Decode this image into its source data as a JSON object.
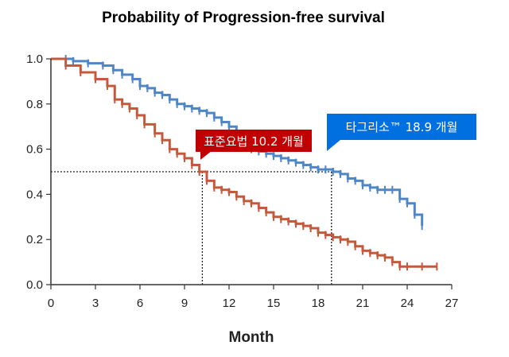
{
  "chart_data": {
    "type": "line",
    "title": "Probability of Progression-free survival",
    "xlabel": "Month",
    "ylabel": "",
    "xlim": [
      0,
      27
    ],
    "ylim": [
      0,
      1.0
    ],
    "xticks": [
      "0",
      "3",
      "6",
      "9",
      "12",
      "15",
      "18",
      "21",
      "24",
      "27"
    ],
    "yticks": [
      "0.0",
      "0.2",
      "0.4",
      "0.6",
      "0.8",
      "1.0"
    ],
    "grid": false,
    "median_reference_y": 0.5,
    "series": [
      {
        "name": "타그리소™ 18.9 개월",
        "color": "#4f86c6",
        "median": 18.9,
        "x": [
          0,
          1.0,
          1.5,
          2.5,
          3.5,
          4.2,
          4.8,
          5.5,
          6.0,
          6.5,
          7.0,
          7.5,
          8.0,
          8.5,
          9.0,
          9.5,
          10.0,
          10.5,
          11.0,
          11.5,
          12.0,
          12.5,
          13.0,
          13.5,
          14.0,
          14.5,
          15.0,
          15.5,
          16.0,
          16.5,
          17.0,
          17.5,
          18.0,
          18.5,
          19.0,
          19.5,
          20.0,
          20.5,
          21.0,
          21.5,
          22.0,
          22.5,
          23.0,
          23.5,
          24.0,
          24.5,
          25.0
        ],
        "y": [
          1.0,
          1.0,
          0.99,
          0.98,
          0.97,
          0.95,
          0.93,
          0.91,
          0.88,
          0.87,
          0.85,
          0.84,
          0.82,
          0.8,
          0.79,
          0.78,
          0.77,
          0.76,
          0.74,
          0.72,
          0.7,
          0.64,
          0.63,
          0.6,
          0.59,
          0.58,
          0.57,
          0.56,
          0.55,
          0.54,
          0.53,
          0.52,
          0.51,
          0.51,
          0.5,
          0.49,
          0.47,
          0.46,
          0.44,
          0.43,
          0.42,
          0.42,
          0.42,
          0.38,
          0.36,
          0.31,
          0.26
        ]
      },
      {
        "name": "표준요법 10.2 개월",
        "color": "#c45a3c",
        "median": 10.2,
        "x": [
          0,
          1.0,
          2.0,
          3.0,
          3.8,
          4.3,
          4.8,
          5.3,
          5.8,
          6.3,
          7.0,
          7.5,
          8.0,
          8.5,
          9.0,
          9.5,
          10.0,
          10.5,
          11.0,
          11.5,
          12.0,
          12.5,
          13.0,
          13.5,
          14.0,
          14.5,
          15.0,
          15.5,
          16.0,
          16.5,
          17.0,
          17.5,
          18.0,
          18.5,
          19.0,
          19.5,
          20.0,
          20.5,
          21.0,
          21.5,
          22.0,
          22.5,
          23.0,
          23.5,
          24.0,
          25.0,
          26.0
        ],
        "y": [
          1.0,
          0.97,
          0.94,
          0.91,
          0.88,
          0.82,
          0.8,
          0.78,
          0.75,
          0.71,
          0.67,
          0.64,
          0.6,
          0.58,
          0.56,
          0.53,
          0.5,
          0.46,
          0.43,
          0.42,
          0.41,
          0.39,
          0.37,
          0.36,
          0.34,
          0.32,
          0.3,
          0.29,
          0.28,
          0.27,
          0.26,
          0.25,
          0.23,
          0.22,
          0.21,
          0.2,
          0.19,
          0.17,
          0.15,
          0.14,
          0.13,
          0.12,
          0.1,
          0.08,
          0.08,
          0.08,
          0.08
        ]
      }
    ],
    "callouts": [
      {
        "text": "표준요법 10.2 개월",
        "color": "#c00000"
      },
      {
        "text": "타그리소™ 18.9 개월",
        "color": "#0070e0"
      }
    ]
  }
}
